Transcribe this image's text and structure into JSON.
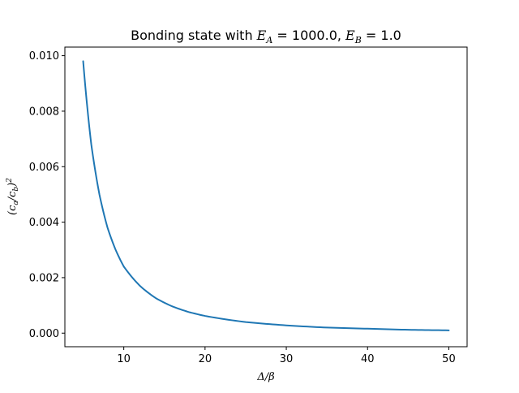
{
  "chart_data": {
    "type": "line",
    "title": {
      "prefix": "Bonding state with ",
      "eA_symbol": "E",
      "eA_sub": "A",
      "eq1": " = 1000.0, ",
      "eB_symbol": "E",
      "eB_sub": "B",
      "eq2": " = 1.0"
    },
    "xlabel": "Δ/β",
    "ylabel": {
      "open": "(c",
      "sub_a": "a",
      "slash": "/c",
      "sub_b": "b",
      "close": ")",
      "sup": "2"
    },
    "xlim": [
      2.75,
      52.25
    ],
    "ylim": [
      -0.00049,
      0.01031
    ],
    "xticks": [
      10,
      20,
      30,
      40,
      50
    ],
    "xtick_labels": [
      "10",
      "20",
      "30",
      "40",
      "50"
    ],
    "yticks": [
      0.0,
      0.002,
      0.004,
      0.006,
      0.008,
      0.01
    ],
    "ytick_labels": [
      "0.000",
      "0.002",
      "0.004",
      "0.006",
      "0.008",
      "0.010"
    ],
    "grid": false,
    "series": [
      {
        "color": "#1f77b4",
        "x": [
          5,
          6,
          7,
          8,
          9,
          10,
          12,
          14,
          16,
          18,
          20,
          25,
          30,
          35,
          40,
          45,
          50
        ],
        "y": [
          0.0098,
          0.0068,
          0.005,
          0.0038,
          0.003,
          0.0024,
          0.0017,
          0.00125,
          0.00096,
          0.00076,
          0.00062,
          0.0004,
          0.00028,
          0.0002,
          0.00016,
          0.00012,
          0.0001
        ]
      }
    ]
  }
}
